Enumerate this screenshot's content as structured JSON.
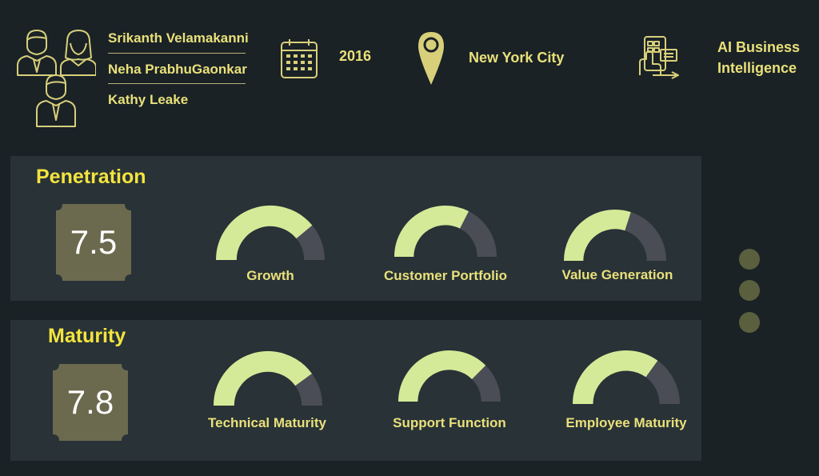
{
  "header": {
    "authors": [
      "Srikanth Velamakanni",
      "Neha PrabhuGaonkar",
      "Kathy Leake"
    ],
    "year": "2016",
    "location": "New York City",
    "topic_line1": "AI Business",
    "topic_line2": "Intelligence",
    "icons": [
      "team-people-icon",
      "calendar-icon",
      "map-pin-icon",
      "tablet-touch-icon"
    ]
  },
  "sections": [
    {
      "title": "Penetration",
      "score": "7.5",
      "gauges": [
        {
          "label": "Growth",
          "fill": 0.78
        },
        {
          "label": "Customer Portfolio",
          "fill": 0.65
        },
        {
          "label": "Value Generation",
          "fill": 0.6
        }
      ]
    },
    {
      "title": "Maturity",
      "score": "7.8",
      "gauges": [
        {
          "label": "Technical Maturity",
          "fill": 0.8
        },
        {
          "label": "Support Function",
          "fill": 0.75
        },
        {
          "label": "Employee Maturity",
          "fill": 0.7
        }
      ]
    }
  ],
  "colors": {
    "background": "#1a2226",
    "panel": "#283237",
    "accent_text": "#e9e07a",
    "title_text": "#f4e43e",
    "gauge_fill": "#d5ea98",
    "gauge_track": "#4a4d55",
    "score_box": "#6b6a4e",
    "pager_dot": "#5a5f3e"
  }
}
